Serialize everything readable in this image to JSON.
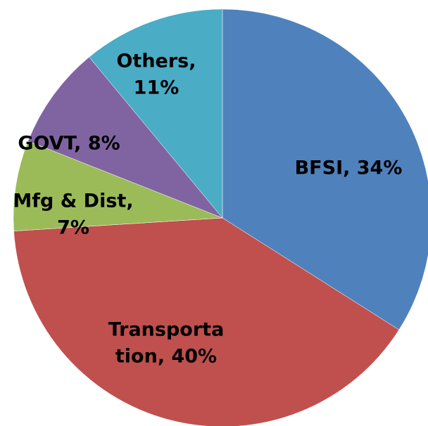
{
  "chart_data": {
    "type": "pie",
    "values": [
      34,
      40,
      7,
      8,
      11
    ],
    "value_labels": [
      [
        "BFSI, 34%"
      ],
      [
        "Transporta",
        "tion, 40%"
      ],
      [
        "Mfg & Dist,",
        "7%"
      ],
      [
        "GOVT, 8%"
      ],
      [
        "Others,",
        "11%"
      ]
    ],
    "colors": [
      "#4f81bd",
      "#c0504d",
      "#9bbb59",
      "#8064a2",
      "#4bacc6"
    ]
  }
}
